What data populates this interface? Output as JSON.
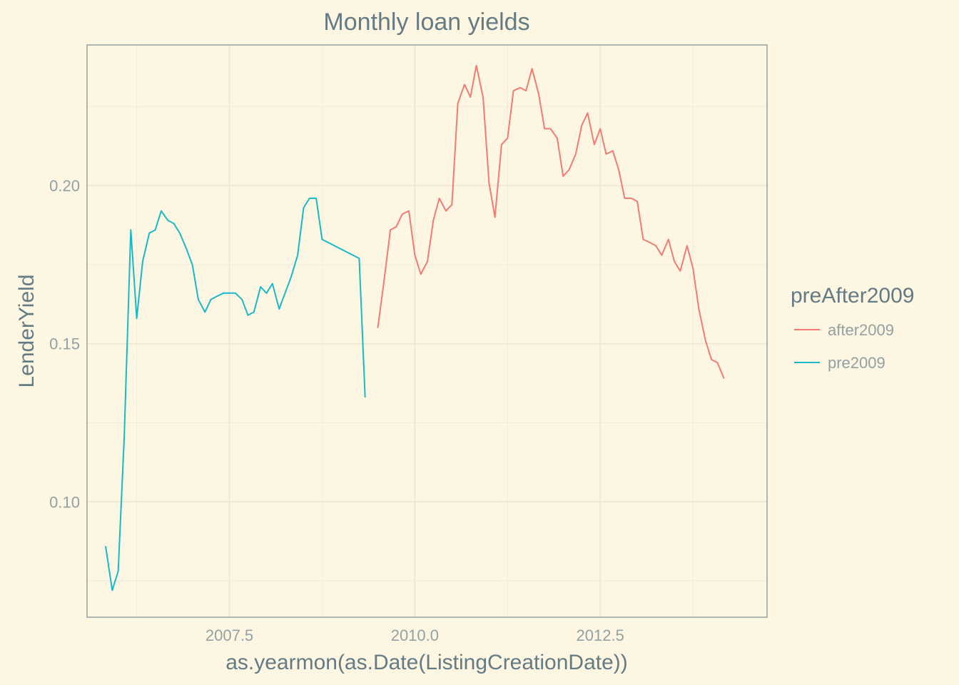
{
  "chart_data": {
    "type": "line",
    "title": "Monthly loan yields",
    "xlabel": "as.yearmon(as.Date(ListingCreationDate))",
    "ylabel": "LenderYield",
    "xlim": [
      2005.58,
      2014.75
    ],
    "ylim": [
      0.0635,
      0.2445
    ],
    "x_ticks": [
      2007.5,
      2010.0,
      2012.5
    ],
    "x_tick_labels": [
      "2007.5",
      "2010.0",
      "2012.5"
    ],
    "y_ticks": [
      0.1,
      0.15,
      0.2
    ],
    "y_tick_labels": [
      "0.10",
      "0.15",
      "0.20"
    ],
    "grid": true,
    "legend": {
      "title": "preAfter2009",
      "position": "right"
    },
    "series": [
      {
        "name": "after2009",
        "color": "#f27b73",
        "x": [
          2009.5,
          2009.58,
          2009.67,
          2009.75,
          2009.83,
          2009.92,
          2010.0,
          2010.08,
          2010.17,
          2010.25,
          2010.33,
          2010.42,
          2010.5,
          2010.58,
          2010.67,
          2010.75,
          2010.83,
          2010.92,
          2011.0,
          2011.08,
          2011.17,
          2011.25,
          2011.33,
          2011.42,
          2011.5,
          2011.58,
          2011.67,
          2011.75,
          2011.83,
          2011.92,
          2012.0,
          2012.08,
          2012.17,
          2012.25,
          2012.33,
          2012.42,
          2012.5,
          2012.58,
          2012.67,
          2012.75,
          2012.83,
          2012.92,
          2013.0,
          2013.08,
          2013.17,
          2013.25,
          2013.33,
          2013.42,
          2013.5,
          2013.58,
          2013.67,
          2013.75,
          2013.83,
          2013.92,
          2014.0,
          2014.08,
          2014.17
        ],
        "values": [
          0.155,
          0.169,
          0.186,
          0.187,
          0.191,
          0.192,
          0.178,
          0.172,
          0.176,
          0.189,
          0.196,
          0.192,
          0.194,
          0.226,
          0.232,
          0.228,
          0.238,
          0.228,
          0.201,
          0.19,
          0.213,
          0.215,
          0.23,
          0.231,
          0.23,
          0.237,
          0.229,
          0.218,
          0.218,
          0.215,
          0.203,
          0.205,
          0.21,
          0.219,
          0.223,
          0.213,
          0.218,
          0.21,
          0.211,
          0.205,
          0.196,
          0.196,
          0.195,
          0.183,
          0.182,
          0.181,
          0.178,
          0.183,
          0.176,
          0.173,
          0.181,
          0.174,
          0.161,
          0.151,
          0.145,
          0.144,
          0.139
        ]
      },
      {
        "name": "pre2009",
        "color": "#1ab8c7",
        "x": [
          2005.83,
          2005.92,
          2006.0,
          2006.08,
          2006.17,
          2006.25,
          2006.33,
          2006.42,
          2006.5,
          2006.58,
          2006.67,
          2006.75,
          2006.83,
          2006.92,
          2007.0,
          2007.08,
          2007.17,
          2007.25,
          2007.33,
          2007.42,
          2007.5,
          2007.58,
          2007.67,
          2007.75,
          2007.83,
          2007.92,
          2008.0,
          2008.08,
          2008.17,
          2008.25,
          2008.33,
          2008.42,
          2008.5,
          2008.58,
          2008.67,
          2008.75,
          2009.25,
          2009.33
        ],
        "values": [
          0.086,
          0.072,
          0.078,
          0.12,
          0.186,
          0.158,
          0.176,
          0.185,
          0.186,
          0.192,
          0.189,
          0.188,
          0.185,
          0.18,
          0.175,
          0.164,
          0.16,
          0.164,
          0.165,
          0.166,
          0.166,
          0.166,
          0.164,
          0.159,
          0.16,
          0.168,
          0.166,
          0.169,
          0.161,
          0.166,
          0.171,
          0.178,
          0.193,
          0.196,
          0.196,
          0.183,
          0.177,
          0.133
        ]
      }
    ]
  }
}
